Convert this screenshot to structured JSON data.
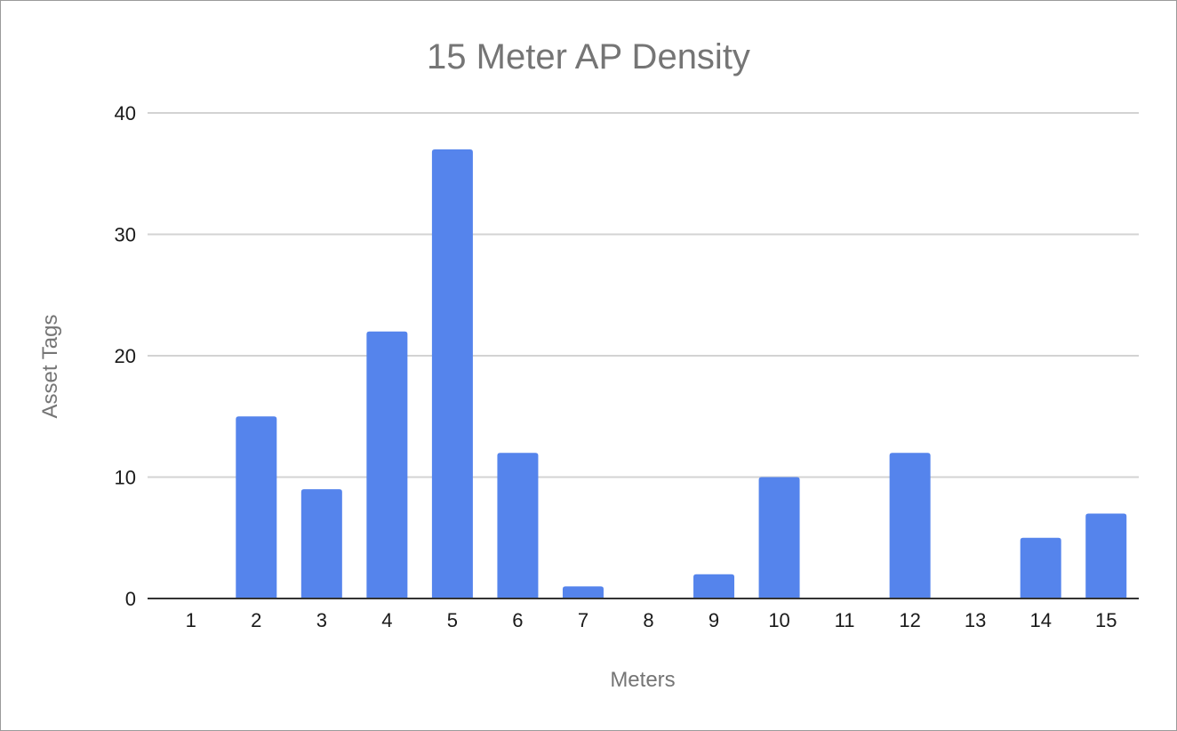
{
  "chart_data": {
    "type": "bar",
    "title": "15 Meter AP Density",
    "xlabel": "Meters",
    "ylabel": "Asset Tags",
    "categories": [
      "1",
      "2",
      "3",
      "4",
      "5",
      "6",
      "7",
      "8",
      "9",
      "10",
      "11",
      "12",
      "13",
      "14",
      "15"
    ],
    "values": [
      0,
      15,
      9,
      22,
      37,
      12,
      1,
      0,
      2,
      10,
      0,
      12,
      0,
      5,
      7
    ],
    "ylim": [
      0,
      40
    ],
    "yticks": [
      0,
      10,
      20,
      30,
      40
    ],
    "grid": true,
    "legend": "none",
    "bar_color": "#5584ec"
  }
}
